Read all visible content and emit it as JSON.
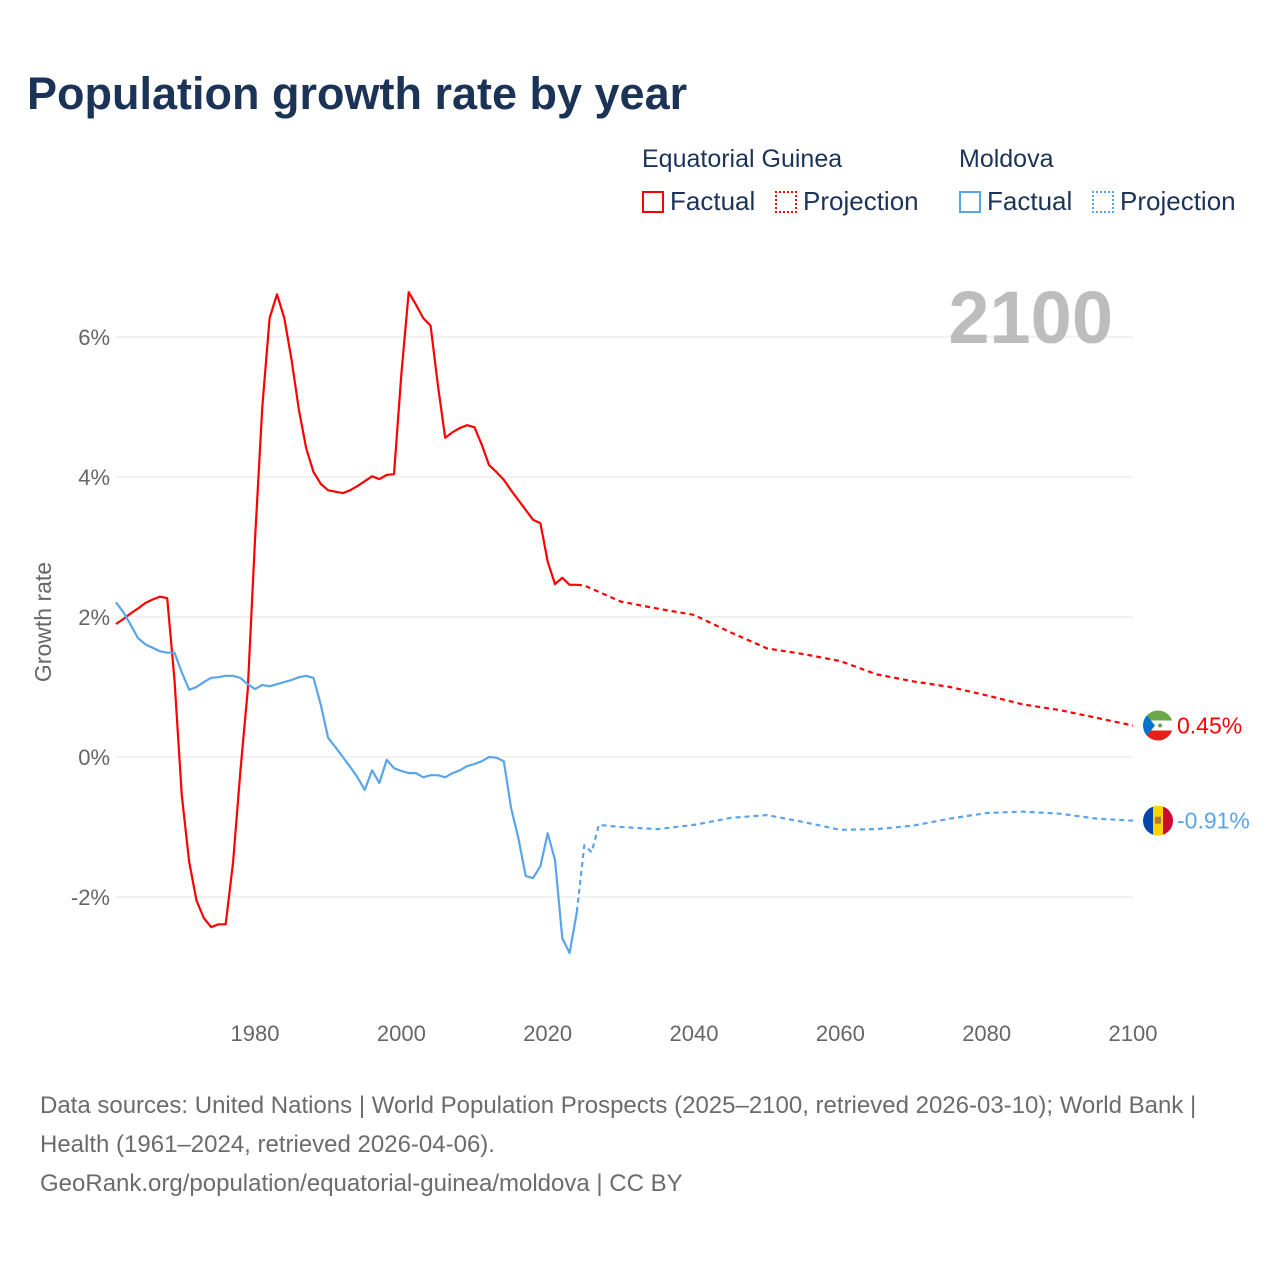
{
  "title": "Population growth rate by year",
  "legend": {
    "groups": [
      {
        "name": "Equatorial Guinea",
        "factual": "Factual",
        "projection": "Projection",
        "color": "#ff0000"
      },
      {
        "name": "Moldova",
        "factual": "Factual",
        "projection": "Projection",
        "color": "#5aa5ea"
      }
    ]
  },
  "year_label": "2100",
  "footer": {
    "sources": "Data sources: United Nations | World Population Prospects (2025–2100, retrieved 2026-03-10); World Bank | Health (1961–2024, retrieved 2026-04-06).",
    "link": "GeoRank.org/population/equatorial-guinea/moldova | CC BY"
  },
  "chart_data": {
    "type": "line",
    "title": "Population growth rate by year",
    "xlabel": "",
    "ylabel": "Growth rate",
    "xlim": [
      1961,
      2100
    ],
    "ylim": [
      -3.5,
      6.8
    ],
    "xticks": [
      1980,
      2000,
      2020,
      2040,
      2060,
      2080,
      2100
    ],
    "xtick_labels": [
      "1980",
      "2000",
      "2020",
      "2040",
      "2060",
      "2080",
      "2100"
    ],
    "yticks": [
      -2,
      0,
      2,
      4,
      6
    ],
    "ytick_labels": [
      "-2%",
      "0%",
      "2%",
      "4%",
      "6%"
    ],
    "grid": true,
    "legend_position": "top-right",
    "series": [
      {
        "name": "Equatorial Guinea Factual",
        "color": "#ff0000",
        "style": "solid",
        "x": [
          1961,
          1962,
          1963,
          1964,
          1965,
          1966,
          1967,
          1968,
          1969,
          1970,
          1971,
          1972,
          1973,
          1974,
          1975,
          1976,
          1977,
          1978,
          1979,
          1980,
          1981,
          1982,
          1983,
          1984,
          1985,
          1986,
          1987,
          1988,
          1989,
          1990,
          1991,
          1992,
          1993,
          1994,
          1995,
          1996,
          1997,
          1998,
          1999,
          2000,
          2001,
          2002,
          2003,
          2004,
          2005,
          2006,
          2007,
          2008,
          2009,
          2010,
          2011,
          2012,
          2013,
          2014,
          2015,
          2016,
          2017,
          2018,
          2019,
          2020,
          2021,
          2022,
          2023,
          2024
        ],
        "y": [
          1.9,
          1.97,
          2.05,
          2.12,
          2.2,
          2.25,
          2.29,
          2.27,
          1.1,
          -0.55,
          -1.5,
          -2.05,
          -2.3,
          -2.43,
          -2.39,
          -2.39,
          -1.5,
          -0.2,
          0.95,
          3.1,
          5.0,
          6.27,
          6.61,
          6.27,
          5.67,
          4.96,
          4.41,
          4.07,
          3.9,
          3.81,
          3.79,
          3.77,
          3.81,
          3.87,
          3.94,
          4.01,
          3.97,
          4.03,
          4.04,
          5.46,
          6.64,
          6.46,
          6.27,
          6.16,
          5.31,
          4.56,
          4.64,
          4.7,
          4.74,
          4.71,
          4.46,
          4.17,
          4.07,
          3.96,
          3.81,
          3.67,
          3.53,
          3.39,
          3.34,
          2.79,
          2.47,
          2.56,
          2.46,
          2.46
        ]
      },
      {
        "name": "Equatorial Guinea Projection",
        "color": "#ff0000",
        "style": "dashed",
        "x": [
          2024,
          2025,
          2030,
          2035,
          2040,
          2045,
          2050,
          2055,
          2060,
          2065,
          2070,
          2075,
          2080,
          2085,
          2090,
          2095,
          2100
        ],
        "y": [
          2.46,
          2.45,
          2.22,
          2.12,
          2.03,
          1.78,
          1.55,
          1.47,
          1.37,
          1.18,
          1.08,
          1.0,
          0.88,
          0.75,
          0.67,
          0.56,
          0.45
        ]
      },
      {
        "name": "Moldova Factual",
        "color": "#5aa5ea",
        "style": "solid",
        "x": [
          1961,
          1962,
          1963,
          1964,
          1965,
          1966,
          1967,
          1968,
          1969,
          1970,
          1971,
          1972,
          1973,
          1974,
          1975,
          1976,
          1977,
          1978,
          1979,
          1980,
          1981,
          1982,
          1983,
          1984,
          1985,
          1986,
          1987,
          1988,
          1989,
          1990,
          1991,
          1992,
          1993,
          1994,
          1995,
          1996,
          1997,
          1998,
          1999,
          2000,
          2001,
          2002,
          2003,
          2004,
          2005,
          2006,
          2007,
          2008,
          2009,
          2010,
          2011,
          2012,
          2013,
          2014,
          2015,
          2016,
          2017,
          2018,
          2019,
          2020,
          2021,
          2022,
          2023,
          2024
        ],
        "y": [
          2.21,
          2.07,
          1.89,
          1.7,
          1.61,
          1.56,
          1.51,
          1.49,
          1.49,
          1.21,
          0.96,
          1.0,
          1.07,
          1.13,
          1.14,
          1.16,
          1.16,
          1.13,
          1.04,
          0.97,
          1.03,
          1.01,
          1.04,
          1.07,
          1.1,
          1.14,
          1.16,
          1.13,
          0.74,
          0.27,
          0.14,
          0.0,
          -0.14,
          -0.29,
          -0.47,
          -0.19,
          -0.37,
          -0.04,
          -0.16,
          -0.2,
          -0.23,
          -0.23,
          -0.29,
          -0.26,
          -0.26,
          -0.29,
          -0.23,
          -0.19,
          -0.13,
          -0.1,
          -0.06,
          0.0,
          -0.01,
          -0.06,
          -0.73,
          -1.16,
          -1.7,
          -1.73,
          -1.56,
          -1.09,
          -1.47,
          -2.59,
          -2.8,
          -2.21
        ]
      },
      {
        "name": "Moldova Projection",
        "color": "#5aa5ea",
        "style": "dashed",
        "x": [
          2024,
          2025,
          2026,
          2027,
          2030,
          2035,
          2040,
          2045,
          2050,
          2055,
          2060,
          2065,
          2070,
          2075,
          2080,
          2085,
          2090,
          2095,
          2100
        ],
        "y": [
          -2.21,
          -1.26,
          -1.36,
          -0.97,
          -1.0,
          -1.03,
          -0.97,
          -0.87,
          -0.83,
          -0.93,
          -1.04,
          -1.03,
          -0.98,
          -0.88,
          -0.8,
          -0.78,
          -0.81,
          -0.88,
          -0.91
        ]
      }
    ],
    "end_labels": [
      {
        "country": "Equatorial Guinea",
        "value": 0.45,
        "label": "0.45%",
        "color": "#ff0000",
        "flag": "equatorial-guinea-flag"
      },
      {
        "country": "Moldova",
        "value": -0.91,
        "label": "-0.91%",
        "color": "#5aa5ea",
        "flag": "moldova-flag"
      }
    ]
  }
}
